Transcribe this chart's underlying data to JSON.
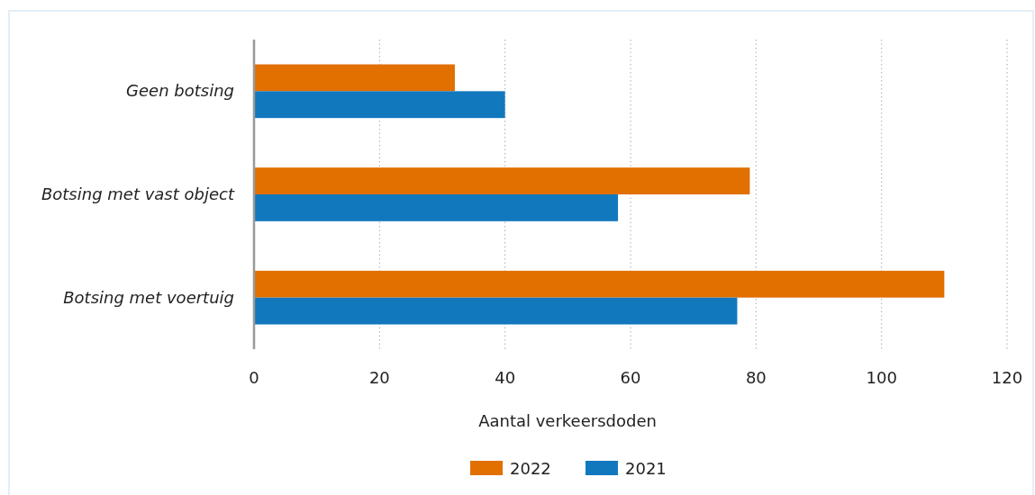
{
  "chart_data": {
    "type": "bar",
    "orientation": "horizontal",
    "xlabel": "Aantal verkeersdoden",
    "categories": [
      "Geen botsing",
      "Botsing met vast object",
      "Botsing met voertuig"
    ],
    "series": [
      {
        "name": "2022",
        "color": "#e17000",
        "values": [
          32,
          79,
          110
        ]
      },
      {
        "name": "2021",
        "color": "#1278be",
        "values": [
          40,
          58,
          77
        ]
      }
    ],
    "xlim": [
      0,
      120
    ],
    "xticks": [
      0,
      20,
      40,
      60,
      80,
      100,
      120
    ],
    "grid": "x",
    "legend": "bottom"
  }
}
